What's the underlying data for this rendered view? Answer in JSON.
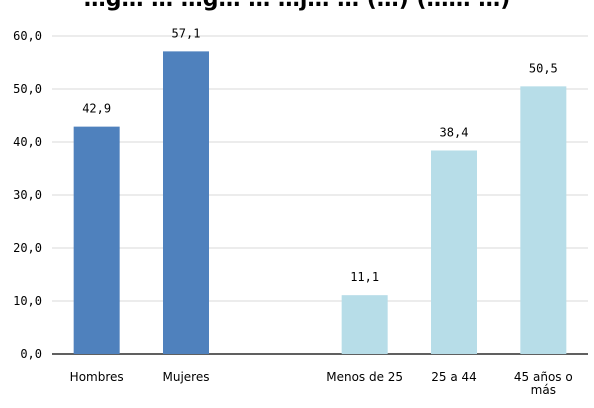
{
  "chart_data": {
    "type": "bar",
    "title": "…g… … …g… … …j… … (…) (…… …)",
    "categories": [
      "Hombres",
      "Mujeres",
      "",
      "Menos de 25",
      "25 a 44",
      "45 años o más"
    ],
    "values": [
      42.9,
      57.1,
      null,
      11.1,
      38.4,
      50.5
    ],
    "value_labels": [
      "42,9",
      "57,1",
      "",
      "11,1",
      "38,4",
      "50,5"
    ],
    "bar_colors": [
      "#4f81bd",
      "#4f81bd",
      null,
      "#b7dde8",
      "#b7dde8",
      "#b7dde8"
    ],
    "ylim": [
      0,
      60
    ],
    "y_ticks": [
      0,
      10,
      20,
      30,
      40,
      50,
      60
    ],
    "y_tick_labels": [
      "0,0",
      "10,0",
      "20,0",
      "30,0",
      "40,0",
      "50,0",
      "60,0"
    ],
    "grid": true,
    "xlabel": "",
    "ylabel": ""
  }
}
